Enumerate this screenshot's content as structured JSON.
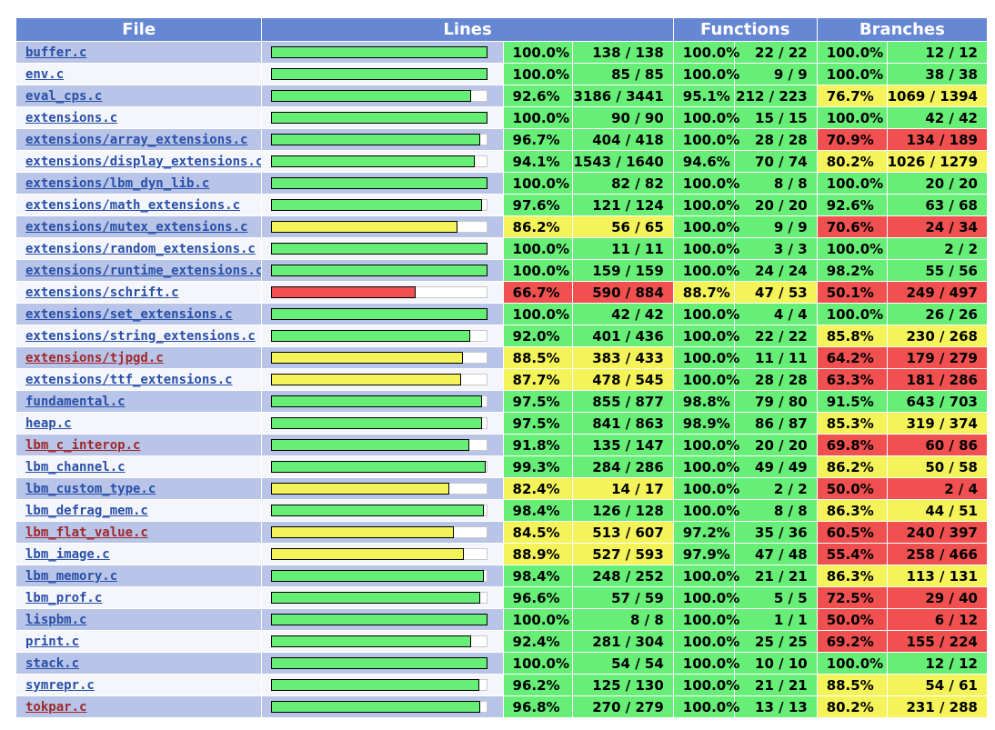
{
  "headers": {
    "file": "File",
    "lines": "Lines",
    "functions": "Functions",
    "branches": "Branches"
  },
  "colors": {
    "high": "#66ee77",
    "medium": "#f4f45a",
    "low": "#f05050",
    "header": "#6688d4",
    "link": "#284fa8",
    "link_warn": "#a0282a"
  },
  "rows": [
    {
      "file": "buffer.c",
      "lines_ratio": 1.0,
      "lines_pct": "100.0%",
      "lines_cnt": "138 / 138",
      "funcs_pct": "100.0%",
      "funcs_cnt": "22 / 22",
      "br_pct": "100.0%",
      "br_cnt": "12 / 12",
      "lines_level": "hi",
      "funcs_level": "hi",
      "br_level": "hi",
      "link_state": "ok"
    },
    {
      "file": "env.c",
      "lines_ratio": 1.0,
      "lines_pct": "100.0%",
      "lines_cnt": "85 / 85",
      "funcs_pct": "100.0%",
      "funcs_cnt": "9 / 9",
      "br_pct": "100.0%",
      "br_cnt": "38 / 38",
      "lines_level": "hi",
      "funcs_level": "hi",
      "br_level": "hi",
      "link_state": "ok"
    },
    {
      "file": "eval_cps.c",
      "lines_ratio": 0.926,
      "lines_pct": "92.6%",
      "lines_cnt": "3186 / 3441",
      "funcs_pct": "95.1%",
      "funcs_cnt": "212 / 223",
      "br_pct": "76.7%",
      "br_cnt": "1069 / 1394",
      "lines_level": "hi",
      "funcs_level": "hi",
      "br_level": "med",
      "link_state": "ok"
    },
    {
      "file": "extensions.c",
      "lines_ratio": 1.0,
      "lines_pct": "100.0%",
      "lines_cnt": "90 / 90",
      "funcs_pct": "100.0%",
      "funcs_cnt": "15 / 15",
      "br_pct": "100.0%",
      "br_cnt": "42 / 42",
      "lines_level": "hi",
      "funcs_level": "hi",
      "br_level": "hi",
      "link_state": "ok"
    },
    {
      "file": "extensions/array_extensions.c",
      "lines_ratio": 0.967,
      "lines_pct": "96.7%",
      "lines_cnt": "404 / 418",
      "funcs_pct": "100.0%",
      "funcs_cnt": "28 / 28",
      "br_pct": "70.9%",
      "br_cnt": "134 / 189",
      "lines_level": "hi",
      "funcs_level": "hi",
      "br_level": "lo",
      "link_state": "ok"
    },
    {
      "file": "extensions/display_extensions.c",
      "lines_ratio": 0.941,
      "lines_pct": "94.1%",
      "lines_cnt": "1543 / 1640",
      "funcs_pct": "94.6%",
      "funcs_cnt": "70 / 74",
      "br_pct": "80.2%",
      "br_cnt": "1026 / 1279",
      "lines_level": "hi",
      "funcs_level": "hi",
      "br_level": "med",
      "link_state": "ok"
    },
    {
      "file": "extensions/lbm_dyn_lib.c",
      "lines_ratio": 1.0,
      "lines_pct": "100.0%",
      "lines_cnt": "82 / 82",
      "funcs_pct": "100.0%",
      "funcs_cnt": "8 / 8",
      "br_pct": "100.0%",
      "br_cnt": "20 / 20",
      "lines_level": "hi",
      "funcs_level": "hi",
      "br_level": "hi",
      "link_state": "ok"
    },
    {
      "file": "extensions/math_extensions.c",
      "lines_ratio": 0.976,
      "lines_pct": "97.6%",
      "lines_cnt": "121 / 124",
      "funcs_pct": "100.0%",
      "funcs_cnt": "20 / 20",
      "br_pct": "92.6%",
      "br_cnt": "63 / 68",
      "lines_level": "hi",
      "funcs_level": "hi",
      "br_level": "hi",
      "link_state": "ok"
    },
    {
      "file": "extensions/mutex_extensions.c",
      "lines_ratio": 0.862,
      "lines_pct": "86.2%",
      "lines_cnt": "56 / 65",
      "funcs_pct": "100.0%",
      "funcs_cnt": "9 / 9",
      "br_pct": "70.6%",
      "br_cnt": "24 / 34",
      "lines_level": "med",
      "funcs_level": "hi",
      "br_level": "lo",
      "link_state": "ok"
    },
    {
      "file": "extensions/random_extensions.c",
      "lines_ratio": 1.0,
      "lines_pct": "100.0%",
      "lines_cnt": "11 / 11",
      "funcs_pct": "100.0%",
      "funcs_cnt": "3 / 3",
      "br_pct": "100.0%",
      "br_cnt": "2 / 2",
      "lines_level": "hi",
      "funcs_level": "hi",
      "br_level": "hi",
      "link_state": "ok"
    },
    {
      "file": "extensions/runtime_extensions.c",
      "lines_ratio": 1.0,
      "lines_pct": "100.0%",
      "lines_cnt": "159 / 159",
      "funcs_pct": "100.0%",
      "funcs_cnt": "24 / 24",
      "br_pct": "98.2%",
      "br_cnt": "55 / 56",
      "lines_level": "hi",
      "funcs_level": "hi",
      "br_level": "hi",
      "link_state": "ok"
    },
    {
      "file": "extensions/schrift.c",
      "lines_ratio": 0.667,
      "lines_pct": "66.7%",
      "lines_cnt": "590 / 884",
      "funcs_pct": "88.7%",
      "funcs_cnt": "47 / 53",
      "br_pct": "50.1%",
      "br_cnt": "249 / 497",
      "lines_level": "lo",
      "funcs_level": "med",
      "br_level": "lo",
      "link_state": "ok"
    },
    {
      "file": "extensions/set_extensions.c",
      "lines_ratio": 1.0,
      "lines_pct": "100.0%",
      "lines_cnt": "42 / 42",
      "funcs_pct": "100.0%",
      "funcs_cnt": "4 / 4",
      "br_pct": "100.0%",
      "br_cnt": "26 / 26",
      "lines_level": "hi",
      "funcs_level": "hi",
      "br_level": "hi",
      "link_state": "ok"
    },
    {
      "file": "extensions/string_extensions.c",
      "lines_ratio": 0.92,
      "lines_pct": "92.0%",
      "lines_cnt": "401 / 436",
      "funcs_pct": "100.0%",
      "funcs_cnt": "22 / 22",
      "br_pct": "85.8%",
      "br_cnt": "230 / 268",
      "lines_level": "hi",
      "funcs_level": "hi",
      "br_level": "med",
      "link_state": "ok"
    },
    {
      "file": "extensions/tjpgd.c",
      "lines_ratio": 0.885,
      "lines_pct": "88.5%",
      "lines_cnt": "383 / 433",
      "funcs_pct": "100.0%",
      "funcs_cnt": "11 / 11",
      "br_pct": "64.2%",
      "br_cnt": "179 / 279",
      "lines_level": "med",
      "funcs_level": "hi",
      "br_level": "lo",
      "link_state": "warn"
    },
    {
      "file": "extensions/ttf_extensions.c",
      "lines_ratio": 0.877,
      "lines_pct": "87.7%",
      "lines_cnt": "478 / 545",
      "funcs_pct": "100.0%",
      "funcs_cnt": "28 / 28",
      "br_pct": "63.3%",
      "br_cnt": "181 / 286",
      "lines_level": "med",
      "funcs_level": "hi",
      "br_level": "lo",
      "link_state": "ok"
    },
    {
      "file": "fundamental.c",
      "lines_ratio": 0.975,
      "lines_pct": "97.5%",
      "lines_cnt": "855 / 877",
      "funcs_pct": "98.8%",
      "funcs_cnt": "79 / 80",
      "br_pct": "91.5%",
      "br_cnt": "643 / 703",
      "lines_level": "hi",
      "funcs_level": "hi",
      "br_level": "hi",
      "link_state": "ok"
    },
    {
      "file": "heap.c",
      "lines_ratio": 0.975,
      "lines_pct": "97.5%",
      "lines_cnt": "841 / 863",
      "funcs_pct": "98.9%",
      "funcs_cnt": "86 / 87",
      "br_pct": "85.3%",
      "br_cnt": "319 / 374",
      "lines_level": "hi",
      "funcs_level": "hi",
      "br_level": "med",
      "link_state": "ok"
    },
    {
      "file": "lbm_c_interop.c",
      "lines_ratio": 0.918,
      "lines_pct": "91.8%",
      "lines_cnt": "135 / 147",
      "funcs_pct": "100.0%",
      "funcs_cnt": "20 / 20",
      "br_pct": "69.8%",
      "br_cnt": "60 / 86",
      "lines_level": "hi",
      "funcs_level": "hi",
      "br_level": "lo",
      "link_state": "warn"
    },
    {
      "file": "lbm_channel.c",
      "lines_ratio": 0.993,
      "lines_pct": "99.3%",
      "lines_cnt": "284 / 286",
      "funcs_pct": "100.0%",
      "funcs_cnt": "49 / 49",
      "br_pct": "86.2%",
      "br_cnt": "50 / 58",
      "lines_level": "hi",
      "funcs_level": "hi",
      "br_level": "med",
      "link_state": "ok"
    },
    {
      "file": "lbm_custom_type.c",
      "lines_ratio": 0.824,
      "lines_pct": "82.4%",
      "lines_cnt": "14 / 17",
      "funcs_pct": "100.0%",
      "funcs_cnt": "2 / 2",
      "br_pct": "50.0%",
      "br_cnt": "2 / 4",
      "lines_level": "med",
      "funcs_level": "hi",
      "br_level": "lo",
      "link_state": "ok"
    },
    {
      "file": "lbm_defrag_mem.c",
      "lines_ratio": 0.984,
      "lines_pct": "98.4%",
      "lines_cnt": "126 / 128",
      "funcs_pct": "100.0%",
      "funcs_cnt": "8 / 8",
      "br_pct": "86.3%",
      "br_cnt": "44 / 51",
      "lines_level": "hi",
      "funcs_level": "hi",
      "br_level": "med",
      "link_state": "ok"
    },
    {
      "file": "lbm_flat_value.c",
      "lines_ratio": 0.845,
      "lines_pct": "84.5%",
      "lines_cnt": "513 / 607",
      "funcs_pct": "97.2%",
      "funcs_cnt": "35 / 36",
      "br_pct": "60.5%",
      "br_cnt": "240 / 397",
      "lines_level": "med",
      "funcs_level": "hi",
      "br_level": "lo",
      "link_state": "warn"
    },
    {
      "file": "lbm_image.c",
      "lines_ratio": 0.889,
      "lines_pct": "88.9%",
      "lines_cnt": "527 / 593",
      "funcs_pct": "97.9%",
      "funcs_cnt": "47 / 48",
      "br_pct": "55.4%",
      "br_cnt": "258 / 466",
      "lines_level": "med",
      "funcs_level": "hi",
      "br_level": "lo",
      "link_state": "ok"
    },
    {
      "file": "lbm_memory.c",
      "lines_ratio": 0.984,
      "lines_pct": "98.4%",
      "lines_cnt": "248 / 252",
      "funcs_pct": "100.0%",
      "funcs_cnt": "21 / 21",
      "br_pct": "86.3%",
      "br_cnt": "113 / 131",
      "lines_level": "hi",
      "funcs_level": "hi",
      "br_level": "med",
      "link_state": "ok"
    },
    {
      "file": "lbm_prof.c",
      "lines_ratio": 0.966,
      "lines_pct": "96.6%",
      "lines_cnt": "57 / 59",
      "funcs_pct": "100.0%",
      "funcs_cnt": "5 / 5",
      "br_pct": "72.5%",
      "br_cnt": "29 / 40",
      "lines_level": "hi",
      "funcs_level": "hi",
      "br_level": "lo",
      "link_state": "ok"
    },
    {
      "file": "lispbm.c",
      "lines_ratio": 1.0,
      "lines_pct": "100.0%",
      "lines_cnt": "8 / 8",
      "funcs_pct": "100.0%",
      "funcs_cnt": "1 / 1",
      "br_pct": "50.0%",
      "br_cnt": "6 / 12",
      "lines_level": "hi",
      "funcs_level": "hi",
      "br_level": "lo",
      "link_state": "ok"
    },
    {
      "file": "print.c",
      "lines_ratio": 0.924,
      "lines_pct": "92.4%",
      "lines_cnt": "281 / 304",
      "funcs_pct": "100.0%",
      "funcs_cnt": "25 / 25",
      "br_pct": "69.2%",
      "br_cnt": "155 / 224",
      "lines_level": "hi",
      "funcs_level": "hi",
      "br_level": "lo",
      "link_state": "ok"
    },
    {
      "file": "stack.c",
      "lines_ratio": 1.0,
      "lines_pct": "100.0%",
      "lines_cnt": "54 / 54",
      "funcs_pct": "100.0%",
      "funcs_cnt": "10 / 10",
      "br_pct": "100.0%",
      "br_cnt": "12 / 12",
      "lines_level": "hi",
      "funcs_level": "hi",
      "br_level": "hi",
      "link_state": "ok"
    },
    {
      "file": "symrepr.c",
      "lines_ratio": 0.962,
      "lines_pct": "96.2%",
      "lines_cnt": "125 / 130",
      "funcs_pct": "100.0%",
      "funcs_cnt": "21 / 21",
      "br_pct": "88.5%",
      "br_cnt": "54 / 61",
      "lines_level": "hi",
      "funcs_level": "hi",
      "br_level": "med",
      "link_state": "ok"
    },
    {
      "file": "tokpar.c",
      "lines_ratio": 0.968,
      "lines_pct": "96.8%",
      "lines_cnt": "270 / 279",
      "funcs_pct": "100.0%",
      "funcs_cnt": "13 / 13",
      "br_pct": "80.2%",
      "br_cnt": "231 / 288",
      "lines_level": "hi",
      "funcs_level": "hi",
      "br_level": "med",
      "link_state": "warn"
    }
  ]
}
